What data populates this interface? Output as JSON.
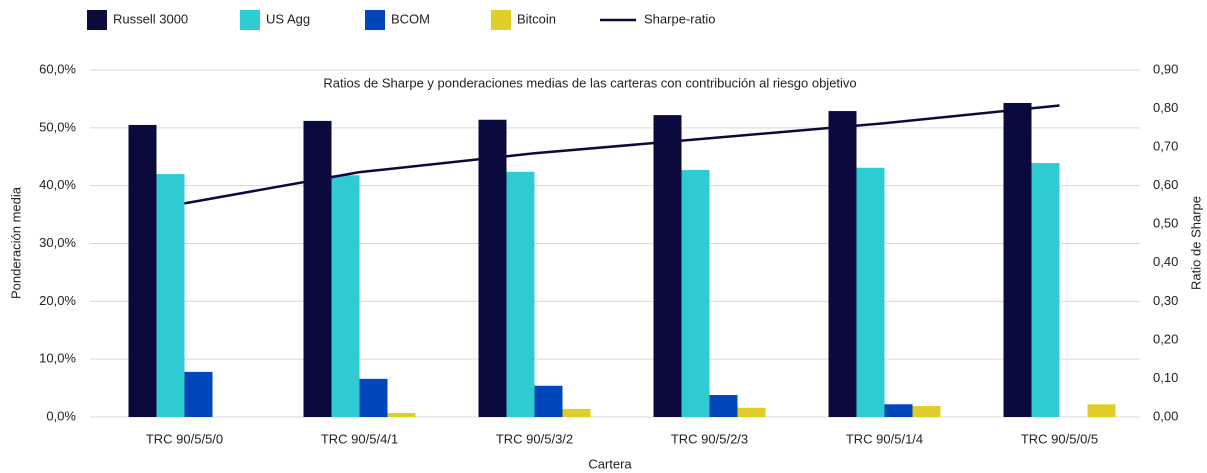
{
  "chart_data": {
    "type": "bar",
    "title": "Ratios de Sharpe y ponderaciones medias de las carteras con contribución al riesgo objetivo",
    "x_label": "Cartera",
    "y_label": "Ponderación media",
    "y2_label": "Ratio de Sharpe",
    "categories": [
      "TRC 90/5/5/0",
      "TRC 90/5/4/1",
      "TRC 90/5/3/2",
      "TRC 90/5/2/3",
      "TRC 90/5/1/4",
      "TRC 90/5/0/5"
    ],
    "series": [
      {
        "name": "Russell 3000",
        "color": "#0b0a3d",
        "values": [
          50.5,
          51.2,
          51.4,
          52.2,
          52.9,
          54.3
        ]
      },
      {
        "name": "US Agg",
        "color": "#2ecbd3",
        "values": [
          42.0,
          41.8,
          42.4,
          42.7,
          43.1,
          43.9
        ]
      },
      {
        "name": "BCOM",
        "color": "#0047bb",
        "values": [
          7.8,
          6.6,
          5.4,
          3.8,
          2.2,
          0
        ]
      },
      {
        "name": "Bitcoin",
        "color": "#e0cd2a",
        "values": [
          0,
          0.7,
          1.4,
          1.6,
          1.9,
          2.2
        ]
      },
      {
        "name": "Sharpe-ratio",
        "type": "line",
        "axis": "y2",
        "color": "#0b0a3d",
        "values": [
          0.554,
          0.635,
          0.684,
          0.723,
          0.762,
          0.808
        ]
      }
    ],
    "ylim": [
      0,
      60
    ],
    "yticks": [
      {
        "value": 0,
        "label": "0,0%"
      },
      {
        "value": 10,
        "label": "10,0%"
      },
      {
        "value": 20,
        "label": "20,0%"
      },
      {
        "value": 30,
        "label": "30,0%"
      },
      {
        "value": 40,
        "label": "40,0%"
      },
      {
        "value": 50,
        "label": "50,0%"
      },
      {
        "value": 60,
        "label": "60,0%"
      }
    ],
    "y2lim": [
      0,
      0.9
    ],
    "y2ticks": [
      {
        "value": 0,
        "label": "0,00"
      },
      {
        "value": 0.1,
        "label": "0,10"
      },
      {
        "value": 0.2,
        "label": "0,20"
      },
      {
        "value": 0.3,
        "label": "0,30"
      },
      {
        "value": 0.4,
        "label": "0,40"
      },
      {
        "value": 0.5,
        "label": "0,50"
      },
      {
        "value": 0.6,
        "label": "0,60"
      },
      {
        "value": 0.7,
        "label": "0,70"
      },
      {
        "value": 0.8,
        "label": "0,80"
      },
      {
        "value": 0.9,
        "label": "0,90"
      }
    ],
    "grid": true
  }
}
